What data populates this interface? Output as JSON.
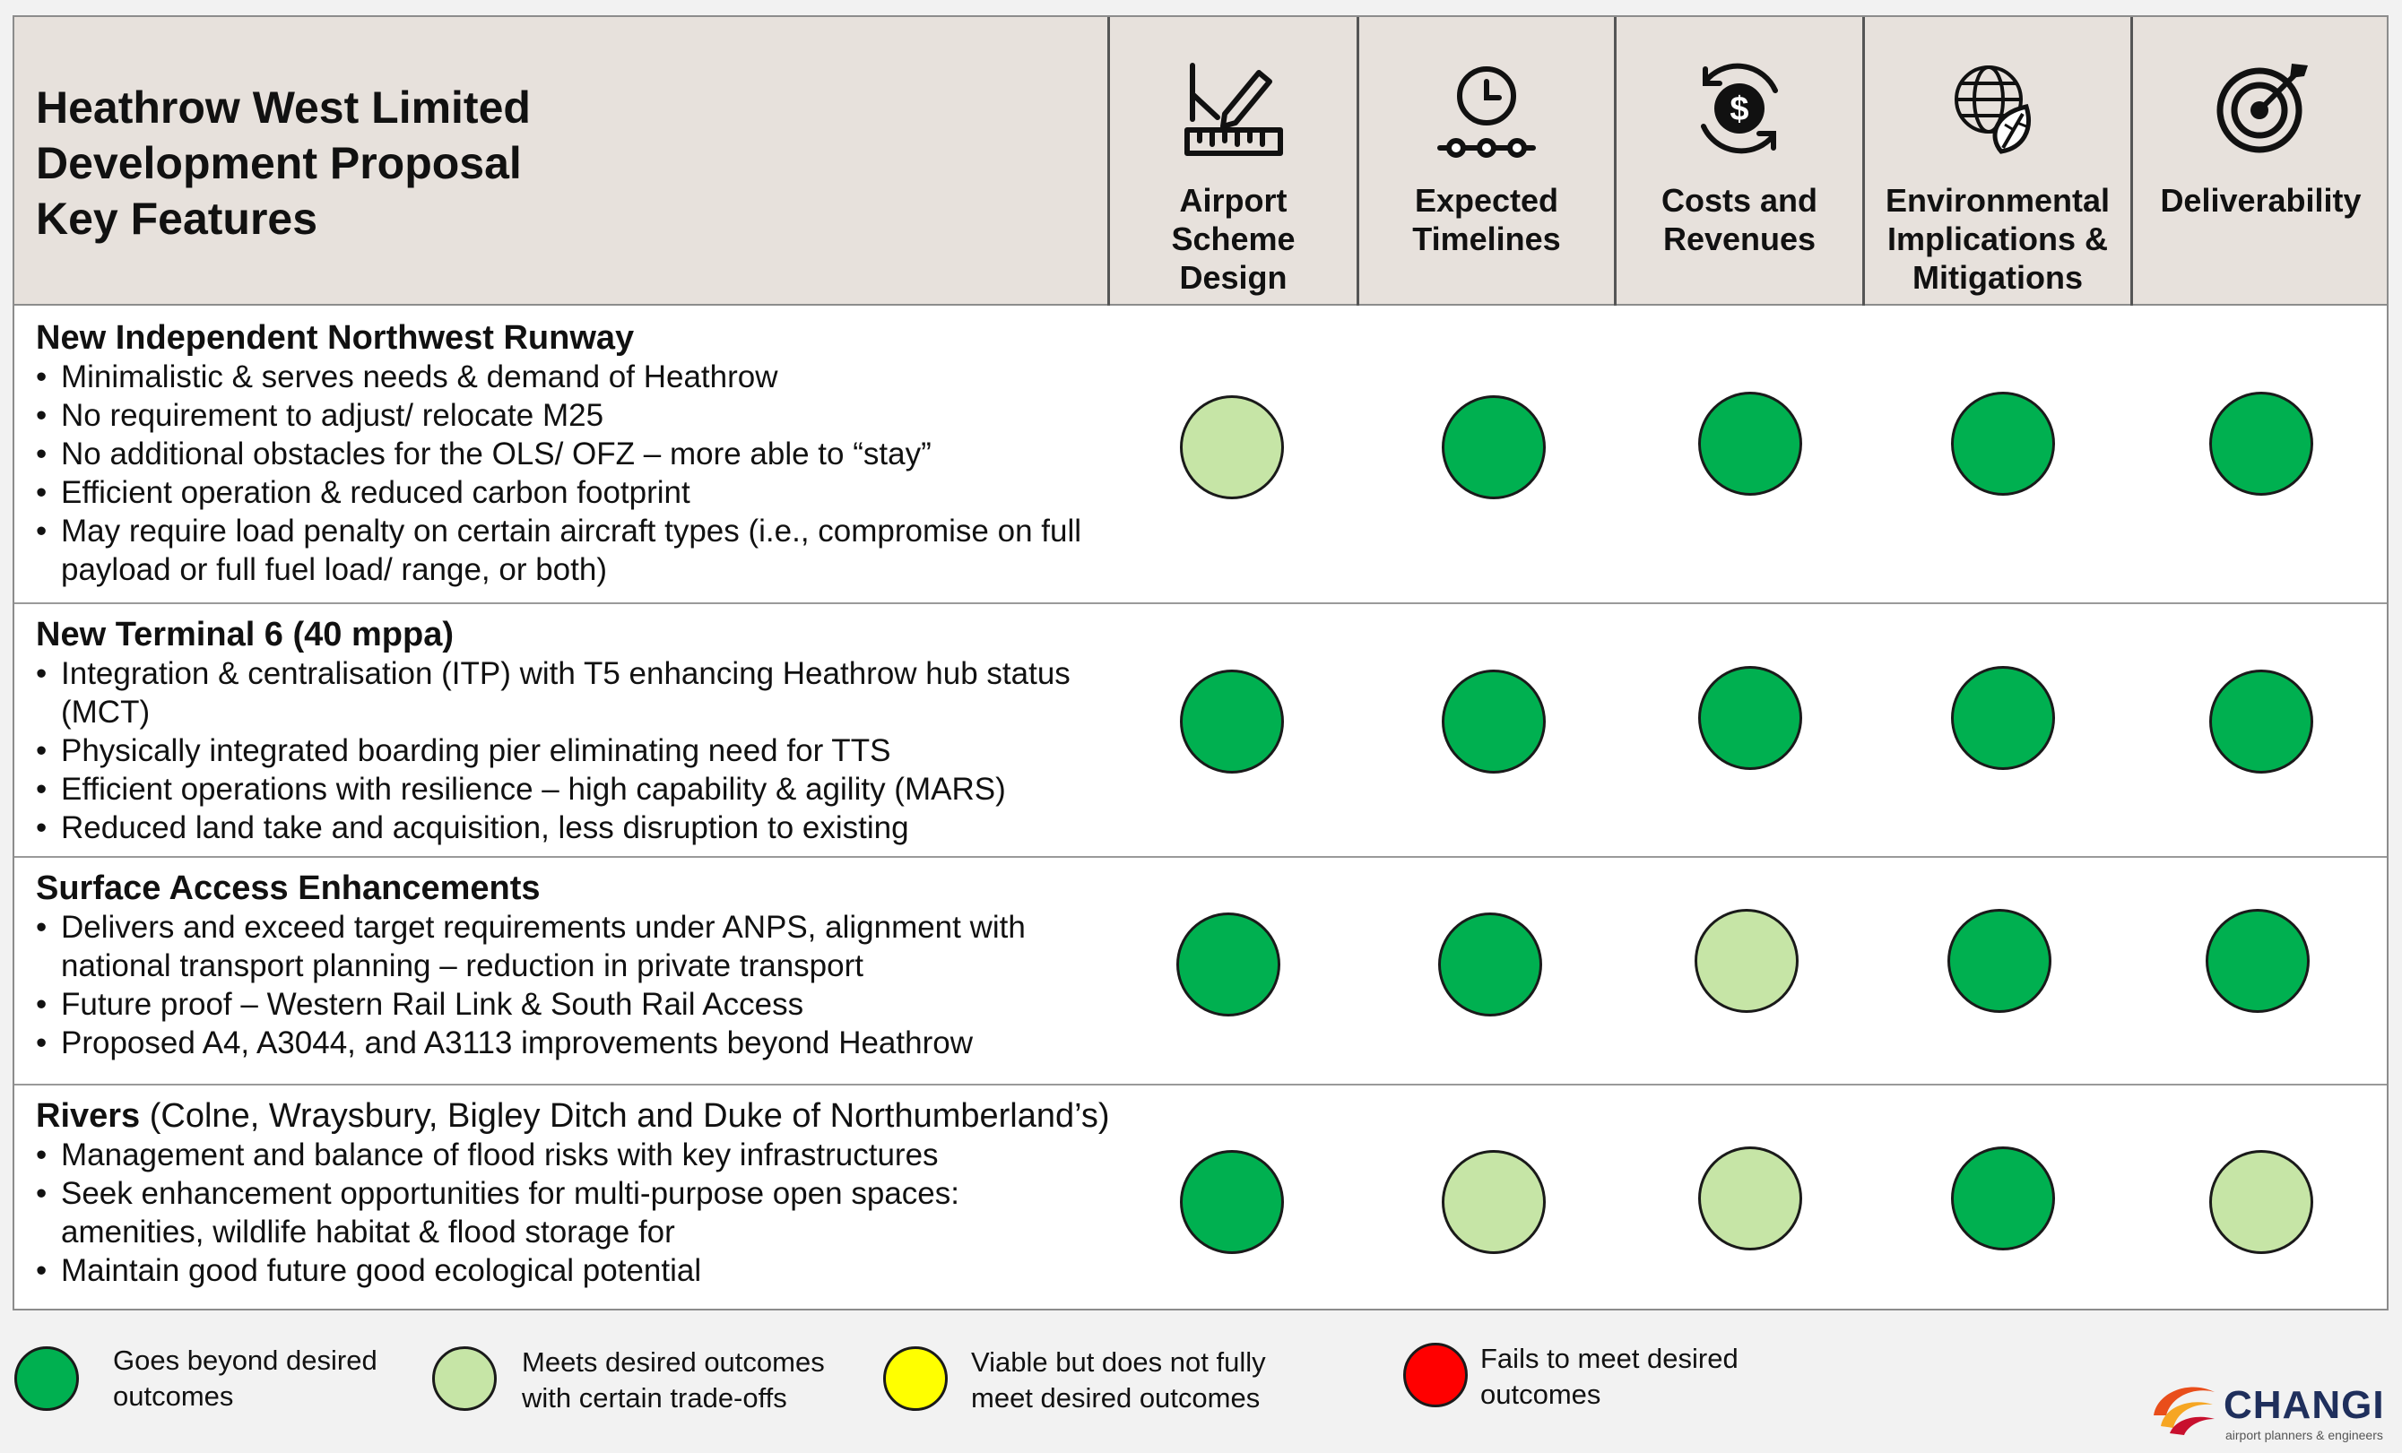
{
  "title": {
    "lines": [
      "Heathrow West Limited",
      "Development Proposal",
      "Key Features"
    ]
  },
  "columns": [
    {
      "id": "design",
      "icon": "ruler-pencil-icon",
      "label_lines": [
        "Airport",
        "Scheme",
        "Design"
      ]
    },
    {
      "id": "timelines",
      "icon": "clock-timeline-icon",
      "label_lines": [
        "Expected",
        "Timelines"
      ]
    },
    {
      "id": "costs",
      "icon": "dollar-cycle-icon",
      "label_lines": [
        "Costs and",
        "Revenues"
      ]
    },
    {
      "id": "environment",
      "icon": "globe-leaf-icon",
      "label_lines": [
        "Environmental",
        "Implications &",
        "Mitigations"
      ]
    },
    {
      "id": "deliverability",
      "icon": "target-icon",
      "label_lines": [
        "Deliverability"
      ]
    }
  ],
  "rows": [
    {
      "title": "New Independent Northwest Runway",
      "subtitle": "",
      "bullets": [
        "Minimalistic & serves needs & demand of Heathrow",
        "No requirement to adjust/ relocate M25",
        "No additional obstacles for the OLS/ OFZ – more able to “stay”",
        "Efficient operation & reduced carbon footprint",
        "May require load penalty on certain aircraft types (i.e., compromise on full payload or full fuel load/ range, or both)"
      ],
      "ratings": [
        "meets",
        "beyond",
        "beyond",
        "beyond",
        "beyond"
      ]
    },
    {
      "title": "New Terminal 6 (40 mppa)",
      "subtitle": "",
      "bullets": [
        "Integration & centralisation (ITP) with T5 enhancing Heathrow hub status (MCT)",
        "Physically integrated boarding pier eliminating need for TTS",
        "Efficient operations with resilience – high capability & agility (MARS)",
        "Reduced land take and acquisition, less disruption to existing"
      ],
      "ratings": [
        "beyond",
        "beyond",
        "beyond",
        "beyond",
        "beyond"
      ]
    },
    {
      "title": "Surface Access Enhancements",
      "subtitle": "",
      "bullets": [
        "Delivers and exceed target requirements under ANPS, alignment with national transport planning – reduction in private transport",
        "Future proof – Western Rail Link & South Rail Access",
        "Proposed A4, A3044, and A3113 improvements beyond Heathrow"
      ],
      "ratings": [
        "beyond",
        "beyond",
        "meets",
        "beyond",
        "beyond"
      ]
    },
    {
      "title": "Rivers",
      "subtitle": " (Colne, Wraysbury, Bigley Ditch and Duke of Northumberland’s)",
      "bullets": [
        "Management and balance of flood risks with key infrastructures",
        "Seek enhancement opportunities for multi-purpose open spaces: amenities, wildlife habitat & flood storage for",
        "Maintain good future good ecological potential"
      ],
      "ratings": [
        "beyond",
        "meets",
        "meets",
        "beyond",
        "meets"
      ]
    }
  ],
  "rating_colors": {
    "beyond": "#00b050",
    "meets": "#c6e5a6",
    "viable": "#ffff00",
    "fails": "#ff0000"
  },
  "legend": [
    {
      "key": "beyond",
      "text_lines": [
        "Goes beyond desired",
        "outcomes"
      ]
    },
    {
      "key": "meets",
      "text_lines": [
        "Meets desired outcomes",
        "with certain trade-offs"
      ]
    },
    {
      "key": "viable",
      "text_lines": [
        "Viable but does not fully",
        "meet desired outcomes"
      ]
    },
    {
      "key": "fails",
      "text_lines": [
        "Fails to meet desired",
        "outcomes"
      ]
    }
  ],
  "logo": {
    "name": "CHANGI",
    "tagline": "airport planners & engineers"
  }
}
